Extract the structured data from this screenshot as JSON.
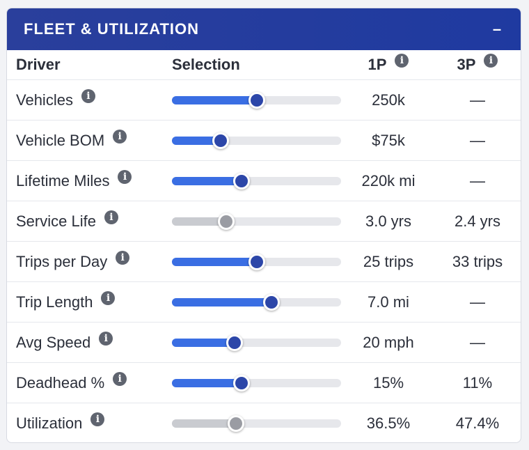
{
  "panel": {
    "title": "FLEET & UTILIZATION",
    "collapse_label": "–"
  },
  "columns": {
    "driver": "Driver",
    "selection": "Selection",
    "p1": "1P",
    "p3": "3P"
  },
  "rows": [
    {
      "label": "Vehicles",
      "v1": "250k",
      "v3": "—",
      "level": 0.5,
      "active": true
    },
    {
      "label": "Vehicle BOM",
      "v1": "$75k",
      "v3": "—",
      "level": 0.29,
      "active": true
    },
    {
      "label": "Lifetime Miles",
      "v1": "220k mi",
      "v3": "—",
      "level": 0.41,
      "active": true
    },
    {
      "label": "Service Life",
      "v1": "3.0 yrs",
      "v3": "2.4 yrs",
      "level": 0.32,
      "active": false
    },
    {
      "label": "Trips per Day",
      "v1": "25 trips",
      "v3": "33 trips",
      "level": 0.5,
      "active": true
    },
    {
      "label": "Trip Length",
      "v1": "7.0 mi",
      "v3": "—",
      "level": 0.59,
      "active": true
    },
    {
      "label": "Avg Speed",
      "v1": "20 mph",
      "v3": "—",
      "level": 0.37,
      "active": true
    },
    {
      "label": "Deadhead %",
      "v1": "15%",
      "v3": "11%",
      "level": 0.41,
      "active": true
    },
    {
      "label": "Utilization",
      "v1": "36.5%",
      "v3": "47.4%",
      "level": 0.38,
      "active": false
    }
  ],
  "colors": {
    "header": "#1f3aa0",
    "accent": "#3a6ee3",
    "thumb": "#2c46a8",
    "inactive": "#c9cbd0"
  }
}
